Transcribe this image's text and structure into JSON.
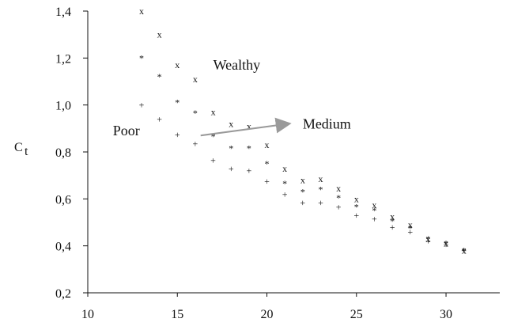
{
  "chart_data": {
    "type": "scatter",
    "title": "",
    "xlabel": "",
    "ylabel": "C",
    "ylabel_subscript": "t",
    "xlim": [
      10,
      33
    ],
    "ylim": [
      0.2,
      1.4
    ],
    "x_ticks": [
      10,
      15,
      20,
      25,
      30
    ],
    "x_tick_labels": [
      "10",
      "15",
      "20",
      "25",
      "30"
    ],
    "y_ticks": [
      0.2,
      0.4,
      0.6,
      0.8,
      1.0,
      1.2,
      1.4
    ],
    "y_tick_labels": [
      "0,2",
      "0,4",
      "0,6",
      "0,8",
      "1,0",
      "1,2",
      "1,4"
    ],
    "grid": false,
    "series": [
      {
        "name": "Wealthy",
        "marker": "x",
        "x": [
          13,
          14,
          15,
          16,
          17,
          18,
          19,
          20,
          21,
          22,
          23,
          24,
          25,
          26,
          27,
          28,
          29,
          30,
          31
        ],
        "y": [
          1.4,
          1.3,
          1.17,
          1.11,
          0.97,
          0.92,
          0.91,
          0.83,
          0.73,
          0.68,
          0.685,
          0.645,
          0.6,
          0.575,
          0.525,
          0.49,
          0.43,
          0.41,
          0.38
        ]
      },
      {
        "name": "Medium",
        "marker": "*",
        "x": [
          13,
          14,
          15,
          16,
          17,
          18,
          19,
          20,
          21,
          22,
          23,
          24,
          25,
          26,
          27,
          28,
          29,
          30,
          31
        ],
        "y": [
          1.2,
          1.12,
          1.01,
          0.965,
          0.865,
          0.815,
          0.815,
          0.75,
          0.665,
          0.63,
          0.64,
          0.605,
          0.565,
          0.55,
          0.505,
          0.475,
          0.43,
          0.41,
          0.38
        ]
      },
      {
        "name": "Poor",
        "marker": "+",
        "x": [
          13,
          14,
          15,
          16,
          17,
          18,
          19,
          20,
          21,
          22,
          23,
          24,
          25,
          26,
          27,
          28,
          29,
          30,
          31
        ],
        "y": [
          1.0,
          0.94,
          0.875,
          0.835,
          0.765,
          0.73,
          0.72,
          0.675,
          0.62,
          0.585,
          0.585,
          0.565,
          0.53,
          0.515,
          0.48,
          0.46,
          0.42,
          0.405,
          0.38
        ]
      }
    ],
    "annotations": [
      {
        "text": "Wealthy",
        "x": 17.0,
        "y": 1.15
      },
      {
        "text": "Poor",
        "x": 11.4,
        "y": 0.87
      },
      {
        "text": "Medium",
        "x": 22.0,
        "y": 0.9
      }
    ],
    "arrow": {
      "from": [
        16.3,
        0.87
      ],
      "to": [
        21.2,
        0.92
      ]
    },
    "colors": {
      "axis": "#111111",
      "marker": "#111111",
      "arrow": "#9a9a9a",
      "background": "#ffffff"
    }
  }
}
